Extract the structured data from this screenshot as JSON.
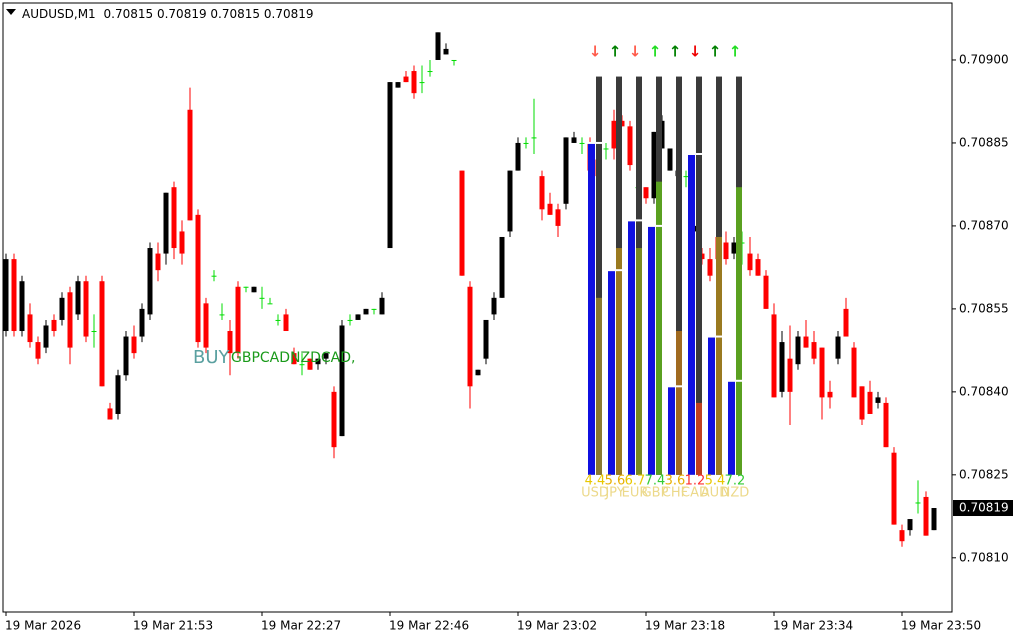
{
  "chart_data": {
    "type": "candlestick",
    "header": {
      "symbol": "AUDUSD,M1",
      "ohlc": [
        0.70815,
        0.70819,
        0.70815,
        0.70819
      ]
    },
    "current_price": 0.70819,
    "categories": [
      "19 Mar 2026",
      null,
      null,
      null,
      null,
      null,
      null,
      null,
      null,
      null,
      null,
      null,
      null,
      null,
      null,
      null,
      "19 Mar 21:53",
      null,
      null,
      null,
      null,
      null,
      null,
      null,
      null,
      null,
      null,
      null,
      null,
      null,
      null,
      null,
      "19 Mar 22:27",
      null,
      null,
      null,
      null,
      null,
      null,
      null,
      null,
      null,
      null,
      null,
      null,
      null,
      null,
      null,
      "19 Mar 22:46",
      null,
      null,
      null,
      null,
      null,
      null,
      null,
      null,
      null,
      null,
      null,
      null,
      null,
      null,
      null,
      "19 Mar 23:02",
      null,
      null,
      null,
      null,
      null,
      null,
      null,
      null,
      null,
      null,
      null,
      null,
      null,
      null,
      null,
      "19 Mar 23:18",
      null,
      null,
      null,
      null,
      null,
      null,
      null,
      null,
      null,
      null,
      null,
      null,
      null,
      null,
      null,
      "19 Mar 23:34",
      null,
      null,
      null,
      null,
      null,
      null,
      null,
      null,
      null,
      null,
      null,
      null,
      null,
      null,
      null,
      "19 Mar 23:50",
      null,
      null,
      null,
      null
    ],
    "open": [
      0.70851,
      0.70864,
      0.70851,
      0.70854,
      0.70849,
      0.70848,
      0.70853,
      0.70853,
      0.70858,
      0.70854,
      0.7086,
      0.70851,
      0.7086,
      0.70837,
      0.70836,
      0.70843,
      0.7085,
      0.7085,
      0.70854,
      0.70865,
      0.70865,
      0.70877,
      0.70869,
      0.70891,
      0.70872,
      0.70856,
      0.70861,
      0.70854,
      0.70851,
      0.70859,
      0.70859,
      0.70858,
      0.70857,
      0.70856,
      0.70853,
      0.70854,
      0.70847,
      0.70845,
      0.70846,
      0.70845,
      0.70846,
      0.7084,
      0.70832,
      0.70853,
      0.70853,
      0.70854,
      0.70855,
      0.70854,
      0.70866,
      0.70895,
      0.70897,
      0.70898,
      0.70896,
      0.70898,
      0.709,
      0.70901,
      0.709,
      0.7088,
      0.70859,
      0.70843,
      0.70846,
      0.70854,
      0.70857,
      0.70869,
      0.7088,
      0.70885,
      0.70886,
      0.70879,
      0.70874,
      0.70873,
      0.70874,
      0.70885,
      0.70885,
      0.70885,
      0.70882,
      0.70884,
      0.70889,
      0.70889,
      0.70888,
      0.70877,
      0.70877,
      0.70875,
      0.70884,
      0.7088,
      0.70879,
      0.70879,
      0.70869,
      0.70865,
      0.70864,
      0.70868,
      0.70867,
      0.70865,
      0.70867,
      0.70865,
      0.70864,
      0.70861,
      0.70854,
      0.7084,
      0.70846,
      0.70845,
      0.7085,
      0.70849,
      0.70848,
      0.7084,
      0.70846,
      0.70855,
      0.70848,
      0.70841,
      0.7084,
      0.70838,
      0.70838,
      0.70829,
      0.70815,
      0.70815,
      0.7082,
      0.70821,
      0.70815
    ],
    "high": [
      0.70865,
      0.70865,
      0.70861,
      0.70856,
      0.7085,
      0.70853,
      0.70854,
      0.70858,
      0.70859,
      0.70861,
      0.70861,
      0.70854,
      0.70861,
      0.70838,
      0.70844,
      0.70851,
      0.70852,
      0.70856,
      0.70867,
      0.70867,
      0.70876,
      0.70878,
      0.70871,
      0.70895,
      0.70873,
      0.70857,
      0.70862,
      0.70856,
      0.70853,
      0.7086,
      0.70859,
      0.70859,
      0.70859,
      0.70857,
      0.70854,
      0.70855,
      0.70848,
      0.70847,
      0.70846,
      0.70846,
      0.70847,
      0.70841,
      0.70853,
      0.70854,
      0.70854,
      0.70855,
      0.70855,
      0.70858,
      0.70896,
      0.70896,
      0.70898,
      0.70899,
      0.70899,
      0.709,
      0.70905,
      0.70903,
      0.709,
      0.7088,
      0.7086,
      0.70844,
      0.70853,
      0.70858,
      0.70868,
      0.7088,
      0.70886,
      0.70886,
      0.70893,
      0.7088,
      0.70876,
      0.70874,
      0.70886,
      0.70887,
      0.70886,
      0.70886,
      0.70884,
      0.70885,
      0.70891,
      0.7089,
      0.70889,
      0.70878,
      0.70877,
      0.70887,
      0.7089,
      0.70884,
      0.7088,
      0.7088,
      0.7087,
      0.70866,
      0.70866,
      0.70869,
      0.70869,
      0.70868,
      0.70869,
      0.70868,
      0.70865,
      0.70862,
      0.70856,
      0.70851,
      0.70852,
      0.70851,
      0.70853,
      0.70851,
      0.70848,
      0.70842,
      0.70851,
      0.70857,
      0.70849,
      0.70841,
      0.70842,
      0.7084,
      0.70839,
      0.7083,
      0.70816,
      0.70817,
      0.70824,
      0.70822,
      0.70819
    ],
    "low": [
      0.7085,
      0.7085,
      0.7085,
      0.70848,
      0.70845,
      0.70847,
      0.7085,
      0.70852,
      0.70845,
      0.70853,
      0.70849,
      0.70848,
      0.70841,
      0.70835,
      0.70835,
      0.70842,
      0.70846,
      0.70849,
      0.70853,
      0.7086,
      0.70863,
      0.70864,
      0.70863,
      0.70871,
      0.70848,
      0.70847,
      0.7086,
      0.70853,
      0.70843,
      0.70846,
      0.70858,
      0.70858,
      0.70855,
      0.70856,
      0.70852,
      0.70851,
      0.70845,
      0.70843,
      0.70844,
      0.70844,
      0.70845,
      0.70828,
      0.70832,
      0.70852,
      0.70853,
      0.70854,
      0.70854,
      0.70854,
      0.70866,
      0.70895,
      0.70896,
      0.70893,
      0.70894,
      0.70897,
      0.709,
      0.70901,
      0.70899,
      0.70861,
      0.70837,
      0.70843,
      0.70845,
      0.70853,
      0.70857,
      0.70868,
      0.7088,
      0.70884,
      0.70883,
      0.70871,
      0.70872,
      0.70868,
      0.70873,
      0.70885,
      0.70883,
      0.70879,
      0.70878,
      0.70882,
      0.70882,
      0.70888,
      0.7088,
      0.70875,
      0.70874,
      0.70874,
      0.70884,
      0.7088,
      0.70878,
      0.70877,
      0.70868,
      0.70863,
      0.7086,
      0.70864,
      0.70863,
      0.70864,
      0.70863,
      0.70861,
      0.70861,
      0.70855,
      0.70839,
      0.70839,
      0.70834,
      0.70844,
      0.70848,
      0.70845,
      0.70835,
      0.70837,
      0.70845,
      0.7085,
      0.70839,
      0.70834,
      0.70836,
      0.70837,
      0.7083,
      0.70816,
      0.70812,
      0.70814,
      0.70818,
      0.70814,
      0.70815
    ],
    "close": [
      0.70864,
      0.70851,
      0.7086,
      0.70849,
      0.70846,
      0.70852,
      0.70851,
      0.70857,
      0.70848,
      0.7086,
      0.7085,
      0.70851,
      0.70841,
      0.70835,
      0.70843,
      0.7085,
      0.70847,
      0.70855,
      0.70866,
      0.70862,
      0.70876,
      0.70866,
      0.70865,
      0.70871,
      0.70849,
      0.70848,
      0.70861,
      0.70854,
      0.70847,
      0.70847,
      0.70859,
      0.70859,
      0.70857,
      0.70856,
      0.70853,
      0.70851,
      0.70845,
      0.70845,
      0.70844,
      0.70846,
      0.70847,
      0.7083,
      0.70852,
      0.70853,
      0.70854,
      0.70855,
      0.70855,
      0.70857,
      0.70896,
      0.70896,
      0.70896,
      0.70894,
      0.70896,
      0.70898,
      0.70905,
      0.70902,
      0.709,
      0.70861,
      0.70841,
      0.70844,
      0.70853,
      0.70857,
      0.70868,
      0.7088,
      0.70885,
      0.70885,
      0.70886,
      0.70873,
      0.70872,
      0.7087,
      0.70886,
      0.70886,
      0.70885,
      0.7088,
      0.70879,
      0.70884,
      0.70884,
      0.70888,
      0.70881,
      0.70877,
      0.70875,
      0.70887,
      0.70889,
      0.70884,
      0.7088,
      0.70879,
      0.7087,
      0.70864,
      0.70861,
      0.70864,
      0.70864,
      0.70867,
      0.70867,
      0.70862,
      0.70861,
      0.70855,
      0.70839,
      0.70849,
      0.7084,
      0.7085,
      0.70848,
      0.70846,
      0.70839,
      0.70839,
      0.7085,
      0.7085,
      0.70839,
      0.70835,
      0.70836,
      0.70839,
      0.7083,
      0.70816,
      0.70813,
      0.70817,
      0.7082,
      0.70814,
      0.70819
    ],
    "bull_color": "#000000",
    "bear_color": "#ff0000",
    "doji_color": "#00dd00",
    "ylim": [
      0.708002,
      0.709103
    ],
    "yticks": [
      {
        "value": 0.7081,
        "label": "0.70810"
      },
      0.70825,
      {
        "value": 0.7084,
        "label": "0.70840"
      },
      0.70855,
      {
        "value": 0.7087,
        "label": "0.70870"
      },
      0.70885,
      {
        "value": 0.709,
        "label": "0.70900"
      }
    ],
    "grid": false,
    "annotations": [
      "BUY",
      "GBPCAD,",
      "NZDCAD,"
    ],
    "meter": {
      "top": 0.70897,
      "base": 0.70825,
      "columns": [
        {
          "currency": "USD",
          "value": 4.4,
          "arrow": "↓",
          "arrow_color": "#ff5a4a",
          "value_color": "#e8c800",
          "fill_color": "#8a7a30",
          "blue": 0.70885,
          "fill": 0.70857
        },
        {
          "currency": "JPY",
          "value": 5.6,
          "arrow": "↑",
          "arrow_color": "#008000",
          "value_color": "#e8b000",
          "fill_color": "#9a7a20",
          "blue": 0.70862,
          "fill": 0.70866
        },
        {
          "currency": "EUR",
          "value": 6.7,
          "arrow": "↓",
          "arrow_color": "#ff5a4a",
          "value_color": "#e8c800",
          "fill_color": "#7a8a20",
          "blue": 0.70871,
          "fill": 0.70866
        },
        {
          "currency": "GBP",
          "value": 7.4,
          "arrow": "↑",
          "arrow_color": "#22dd22",
          "value_color": "#33cc33",
          "fill_color": "#5aa020",
          "blue": 0.7087,
          "fill": 0.70878
        },
        {
          "currency": "CHF",
          "value": 3.6,
          "arrow": "↑",
          "arrow_color": "#008000",
          "value_color": "#e8b000",
          "fill_color": "#a06a20",
          "blue": 0.70841,
          "fill": 0.70851
        },
        {
          "currency": "CAD",
          "value": 1.2,
          "arrow": "↓",
          "arrow_color": "#ee0000",
          "value_color": "#ff3030",
          "fill_color": "#c04020",
          "blue": 0.70883,
          "fill": 0.70838
        },
        {
          "currency": "AUD",
          "value": 5.4,
          "arrow": "↑",
          "arrow_color": "#008000",
          "value_color": "#e8c800",
          "fill_color": "#9a7a20",
          "blue": 0.7085,
          "fill": 0.70868
        },
        {
          "currency": "NZD",
          "value": 7.2,
          "arrow": "↑",
          "arrow_color": "#22dd22",
          "value_color": "#33cc33",
          "fill_color": "#5aa020",
          "blue": 0.70842,
          "fill": 0.70877
        }
      ]
    }
  }
}
